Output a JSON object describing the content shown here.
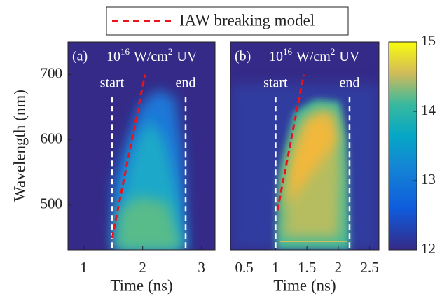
{
  "chart_data": [
    {
      "type": "heatmap",
      "panel_label": "(a)",
      "annotation": {
        "base": "10",
        "exp": "16",
        "unit": "W/cm",
        "unit_exp": "2",
        "tail": "UV"
      },
      "xlabel": "Time (ns)",
      "ylabel": "Wavelength (nm)",
      "xlim": [
        0.73,
        3.23
      ],
      "xticks": [
        1,
        2,
        3
      ],
      "ylim": [
        431,
        750
      ],
      "yticks": [
        500,
        600,
        700
      ],
      "vlines": [
        {
          "label": "start",
          "x": 1.48,
          "top": 666
        },
        {
          "label": "end",
          "x": 2.73,
          "top": 666
        }
      ],
      "series": [
        {
          "name": "IAW breaking model",
          "color": "#e8141b",
          "x": [
            1.48,
            2.04
          ],
          "y": [
            449,
            700
          ]
        }
      ]
    },
    {
      "type": "heatmap",
      "panel_label": "(b)",
      "annotation": {
        "base": "10",
        "exp": "16",
        "unit": "W/cm",
        "unit_exp": "2",
        "tail": "UV"
      },
      "xlabel": "Time (ns)",
      "xlim": [
        0.28,
        2.65
      ],
      "xticks": [
        0.5,
        1,
        1.5,
        2,
        2.5
      ],
      "ylim": [
        431,
        750
      ],
      "vlines": [
        {
          "label": "start",
          "x": 1.0,
          "top": 666
        },
        {
          "label": "end",
          "x": 2.18,
          "top": 666
        }
      ],
      "series": [
        {
          "color": "#e8141b",
          "x": [
            1.03,
            1.45
          ],
          "y": [
            492,
            700
          ]
        }
      ],
      "colorbar": {
        "clim": [
          12,
          15
        ],
        "ticks": [
          12,
          13,
          14,
          15
        ]
      }
    }
  ]
}
